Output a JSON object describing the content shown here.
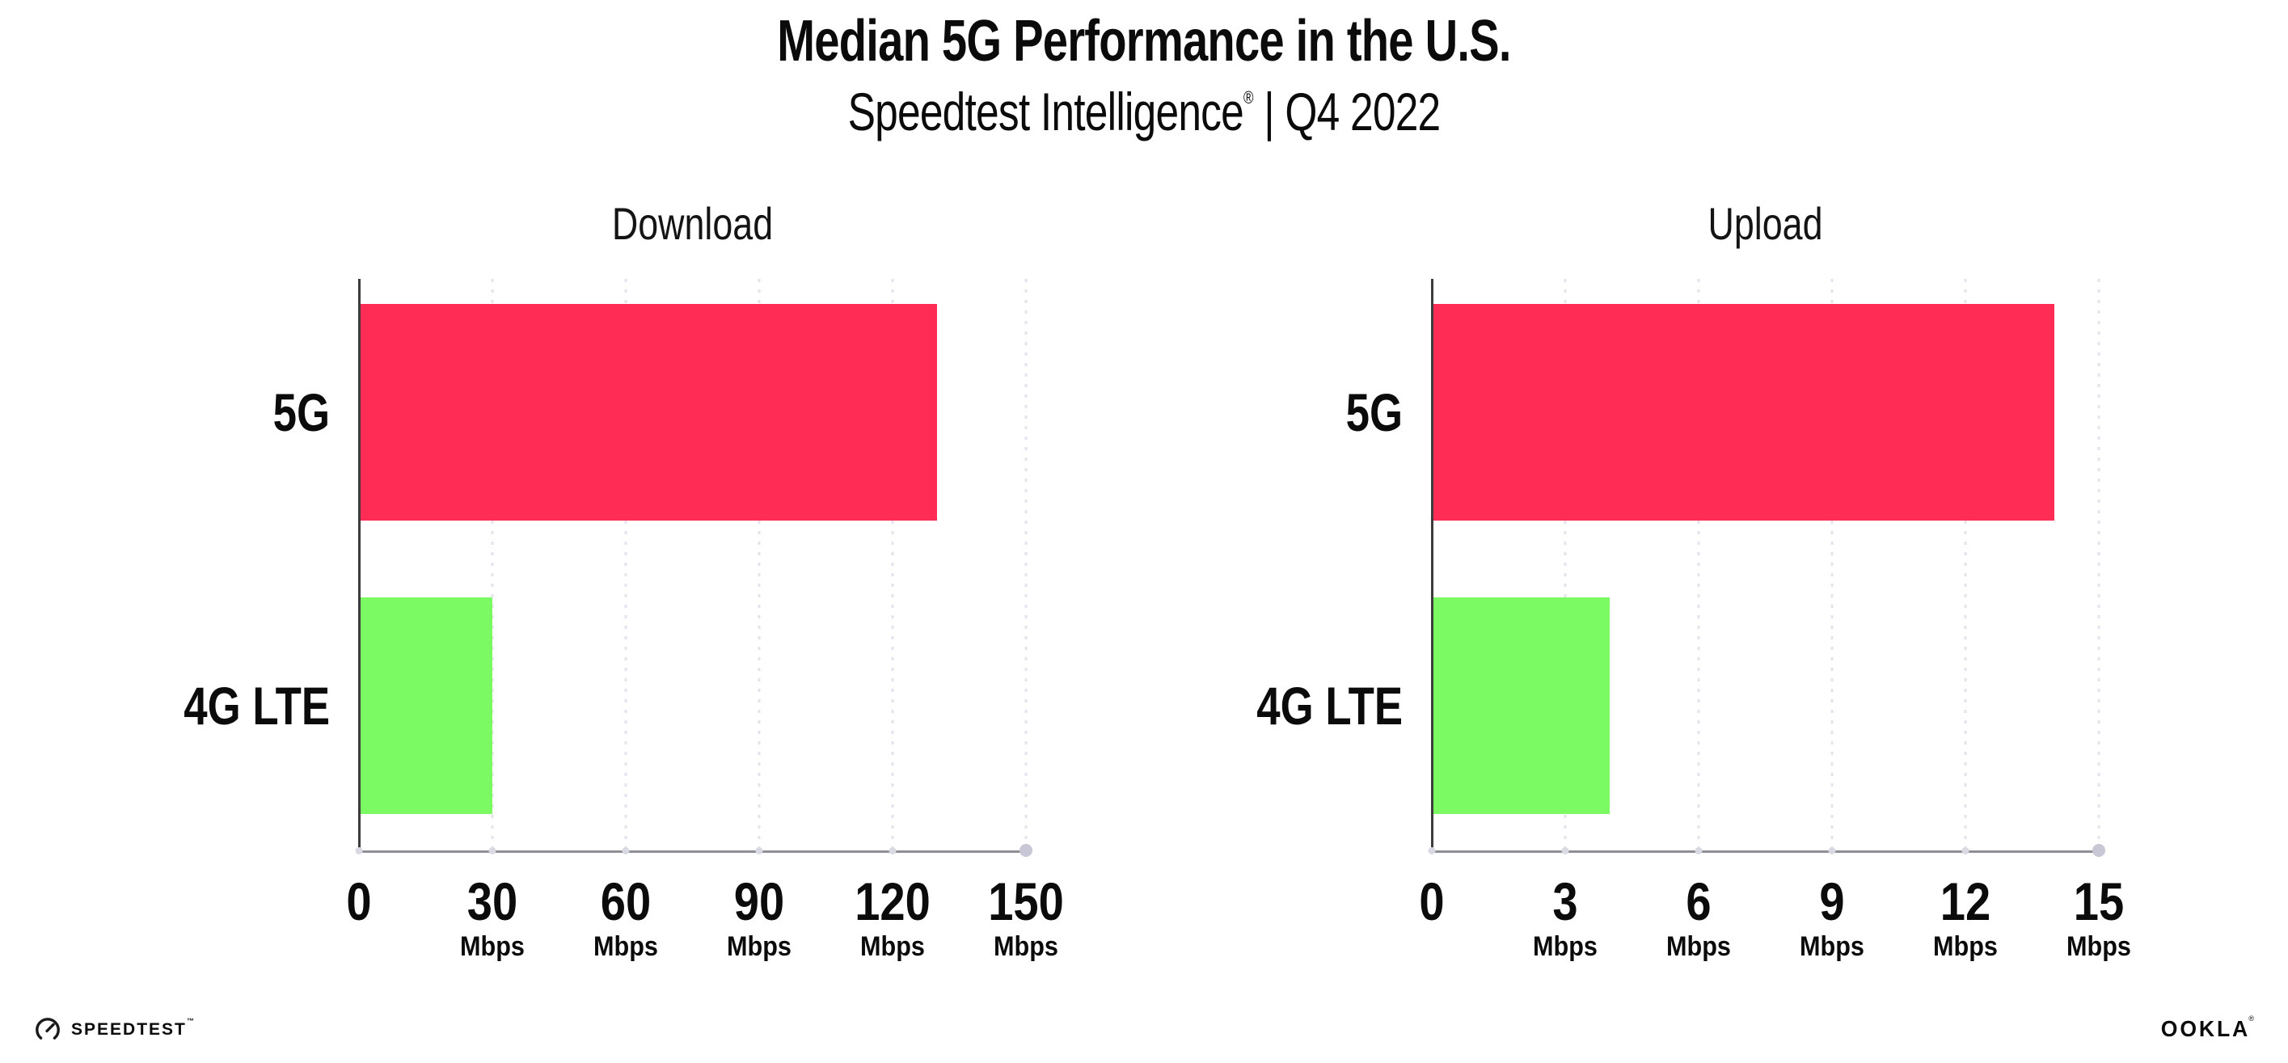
{
  "header": {
    "title": "Median 5G Performance in the U.S.",
    "subtitle_brand": "Speedtest Intelligence",
    "subtitle_mark": "®",
    "subtitle_rest": " | Q4 2022"
  },
  "chart_data": [
    {
      "type": "bar",
      "orientation": "horizontal",
      "title": "Download",
      "categories": [
        "5G",
        "4G LTE"
      ],
      "values": [
        130,
        30
      ],
      "value_unit": "Mbps",
      "bar_colors": [
        "#FF2D55",
        "#7CFA64"
      ],
      "xlim": [
        0,
        150
      ],
      "xticks": [
        0,
        30,
        60,
        90,
        120,
        150
      ],
      "tick_unit": "Mbps",
      "tick_unit_omitted_for_zero": true,
      "grid": "dotted-vertical-on"
    },
    {
      "type": "bar",
      "orientation": "horizontal",
      "title": "Upload",
      "categories": [
        "5G",
        "4G LTE"
      ],
      "values": [
        14,
        4
      ],
      "value_unit": "Mbps",
      "bar_colors": [
        "#FF2D55",
        "#7CFA64"
      ],
      "xlim": [
        0,
        15
      ],
      "xticks": [
        0,
        3,
        6,
        9,
        12,
        15
      ],
      "tick_unit": "Mbps",
      "tick_unit_omitted_for_zero": true,
      "grid": "dotted-vertical-on"
    }
  ],
  "footer": {
    "speedtest_label": "SPEEDTEST",
    "speedtest_mark": "™",
    "ookla_label": "OOKLA",
    "ookla_mark": "®"
  },
  "colors": {
    "bar_5g": "#FF2D55",
    "bar_4g_lte": "#7CFA64",
    "gridline": "#E3E3ED",
    "x_axis": "#8F8F96",
    "y_axis": "#3C3C3C",
    "tick_dot": "#D9D9E4",
    "axis_end_dot": "#C7C7D5",
    "text": "#0B0B0B",
    "background": "#FFFFFF"
  }
}
